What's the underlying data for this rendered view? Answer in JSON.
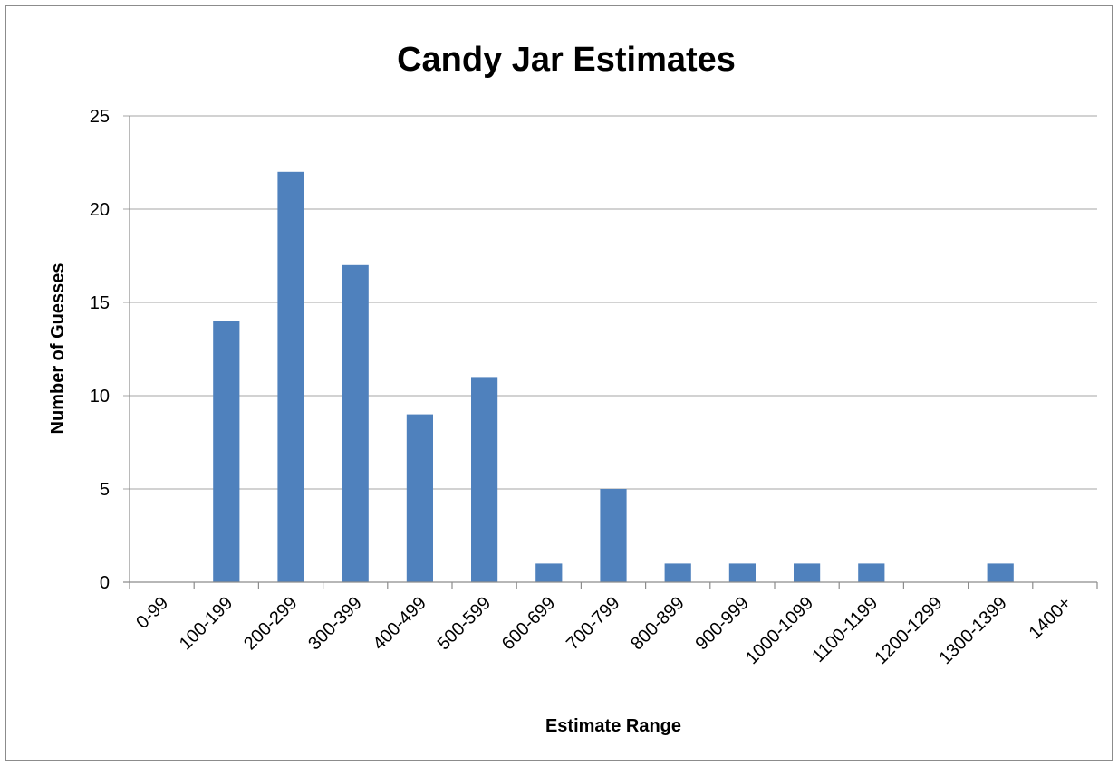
{
  "chart_data": {
    "type": "bar",
    "title": "Candy Jar Estimates",
    "xlabel": "Estimate Range",
    "ylabel": "Number of Guesses",
    "categories": [
      "0-99",
      "100-199",
      "200-299",
      "300-399",
      "400-499",
      "500-599",
      "600-699",
      "700-799",
      "800-899",
      "900-999",
      "1000-1099",
      "1100-1199",
      "1200-1299",
      "1300-1399",
      "1400+"
    ],
    "values": [
      0,
      14,
      22,
      17,
      9,
      11,
      1,
      5,
      1,
      1,
      1,
      1,
      0,
      1,
      0
    ],
    "ylim": [
      0,
      25
    ],
    "yticks": [
      0,
      5,
      10,
      15,
      20,
      25
    ],
    "grid": true,
    "legend": "none",
    "bar_color": "#4f81bd"
  }
}
